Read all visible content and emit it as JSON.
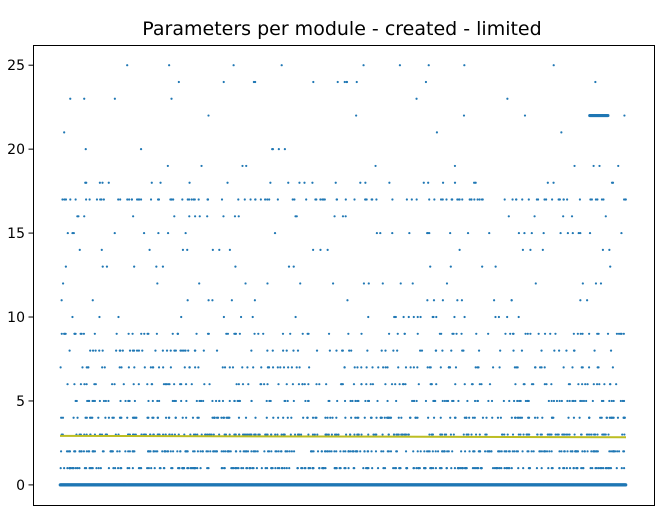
{
  "chart_data": {
    "type": "scatter",
    "title": "Parameters per module - created - limited",
    "xlabel": "",
    "ylabel": "",
    "xlim": [
      0,
      100
    ],
    "ylim": [
      -1.2,
      26.2
    ],
    "x_ticks_visible": false,
    "y_ticks": [
      0,
      5,
      10,
      15,
      20,
      25
    ],
    "y_tick_labels": [
      "0",
      "5",
      "10",
      "15",
      "20",
      "25"
    ],
    "grid": false,
    "legend": "none",
    "colors": {
      "points": "#1f77b4",
      "mean_line": "#bcbd22",
      "axes": "#000000"
    },
    "series": [
      {
        "kind": "points",
        "approximate_point_count_by_y": {
          "0": 1000,
          "1": 250,
          "2": 260,
          "3": 210,
          "4": 150,
          "5": 130,
          "6": 95,
          "7": 90,
          "8": 70,
          "9": 80,
          "10": 25,
          "11": 18,
          "12": 17,
          "13": 14,
          "14": 17,
          "15": 30,
          "16": 22,
          "17": 120,
          "18": 28,
          "19": 10,
          "20": 6,
          "21": 3,
          "22": 5,
          "23": 6,
          "24": 12,
          "25": 9
        },
        "dense_cluster": {
          "y": 22,
          "x_range": [
            93.6,
            96.8
          ]
        }
      },
      {
        "kind": "line",
        "start": [
          0,
          2.92
        ],
        "end": [
          100,
          2.84
        ]
      }
    ]
  }
}
